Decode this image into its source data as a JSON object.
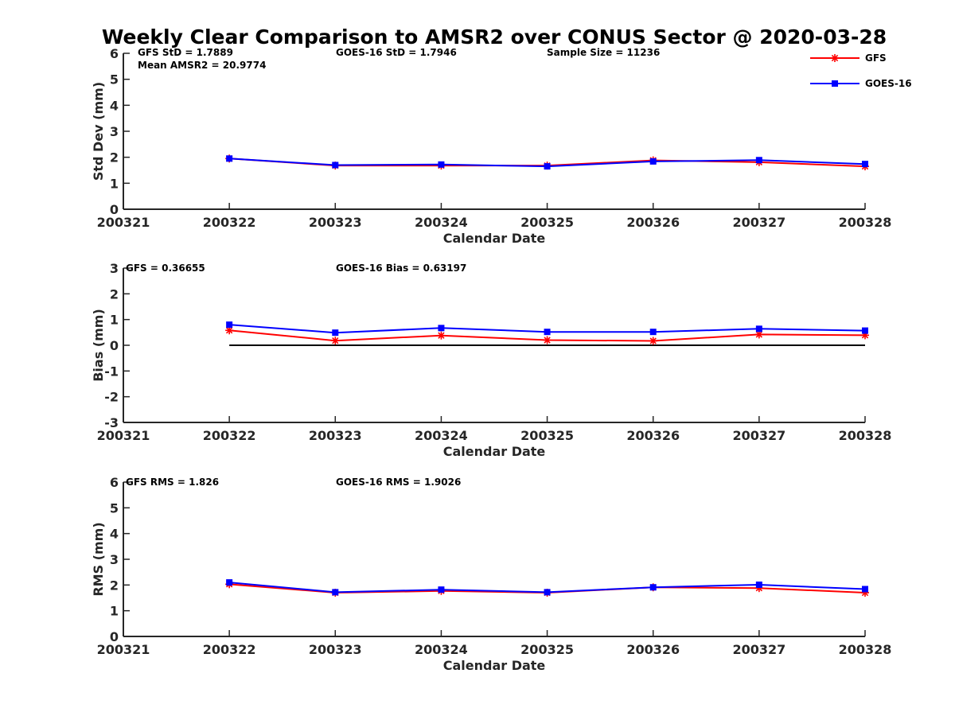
{
  "title": "Weekly Clear Comparison to AMSR2 over CONUS Sector @ 2020-03-28",
  "colors": {
    "GFS": "#ff0000",
    "GOES-16": "#0000ff",
    "zero_line": "#000000",
    "axis": "#262626"
  },
  "legend": [
    {
      "name": "GFS",
      "marker": "asterisk",
      "color": "#ff0000"
    },
    {
      "name": "GOES-16",
      "marker": "square",
      "color": "#0000ff"
    }
  ],
  "chart_data": [
    {
      "type": "line",
      "x": [
        "200321",
        "200322",
        "200323",
        "200324",
        "200325",
        "200326",
        "200327",
        "200328"
      ],
      "xlim": [
        "200321",
        "200328"
      ],
      "xlabel": "Calendar Date",
      "ylabel": "Std Dev (mm)",
      "ylim": [
        0,
        6
      ],
      "yticks": [
        "0",
        "1",
        "2",
        "3",
        "4",
        "5",
        "6"
      ],
      "grid": false,
      "legend_position": "top-right",
      "series": [
        {
          "name": "GFS",
          "x": [
            "200322",
            "200323",
            "200324",
            "200325",
            "200326",
            "200327",
            "200328"
          ],
          "values": [
            1.95,
            1.68,
            1.68,
            1.68,
            1.88,
            1.81,
            1.65
          ]
        },
        {
          "name": "GOES-16",
          "x": [
            "200322",
            "200323",
            "200324",
            "200325",
            "200326",
            "200327",
            "200328"
          ],
          "values": [
            1.95,
            1.7,
            1.72,
            1.65,
            1.84,
            1.89,
            1.74
          ]
        }
      ],
      "annotations": [
        "GFS StD = 1.7889",
        "Mean AMSR2 = 20.9774",
        "GOES-16 StD = 1.7946",
        "Sample Size = 11236"
      ]
    },
    {
      "type": "line",
      "x": [
        "200321",
        "200322",
        "200323",
        "200324",
        "200325",
        "200326",
        "200327",
        "200328"
      ],
      "xlim": [
        "200321",
        "200328"
      ],
      "xlabel": "Calendar Date",
      "ylabel": "Bias (mm)",
      "ylim": [
        -3,
        3
      ],
      "yticks": [
        "-3",
        "-2",
        "-1",
        "0",
        "1",
        "2",
        "3"
      ],
      "grid": false,
      "zero_line": {
        "x": [
          "200322",
          "200328"
        ],
        "y": 0
      },
      "series": [
        {
          "name": "GFS",
          "x": [
            "200322",
            "200323",
            "200324",
            "200325",
            "200326",
            "200327",
            "200328"
          ],
          "values": [
            0.58,
            0.18,
            0.38,
            0.2,
            0.17,
            0.42,
            0.39
          ]
        },
        {
          "name": "GOES-16",
          "x": [
            "200322",
            "200323",
            "200324",
            "200325",
            "200326",
            "200327",
            "200328"
          ],
          "values": [
            0.8,
            0.49,
            0.67,
            0.52,
            0.52,
            0.64,
            0.57
          ]
        }
      ],
      "annotations": [
        "GFS = 0.36655",
        "GOES-16 Bias  = 0.63197"
      ]
    },
    {
      "type": "line",
      "x": [
        "200321",
        "200322",
        "200323",
        "200324",
        "200325",
        "200326",
        "200327",
        "200328"
      ],
      "xlim": [
        "200321",
        "200328"
      ],
      "xlabel": "Calendar Date",
      "ylabel": "RMS (mm)",
      "ylim": [
        0,
        6
      ],
      "yticks": [
        "0",
        "1",
        "2",
        "3",
        "4",
        "5",
        "6"
      ],
      "grid": false,
      "series": [
        {
          "name": "GFS",
          "x": [
            "200322",
            "200323",
            "200324",
            "200325",
            "200326",
            "200327",
            "200328"
          ],
          "values": [
            2.03,
            1.7,
            1.77,
            1.7,
            1.91,
            1.88,
            1.7
          ]
        },
        {
          "name": "GOES-16",
          "x": [
            "200322",
            "200323",
            "200324",
            "200325",
            "200326",
            "200327",
            "200328"
          ],
          "values": [
            2.1,
            1.72,
            1.82,
            1.72,
            1.91,
            2.01,
            1.84
          ]
        }
      ],
      "annotations": [
        "GFS RMS = 1.826",
        "GOES-16 RMS = 1.9026"
      ]
    }
  ]
}
